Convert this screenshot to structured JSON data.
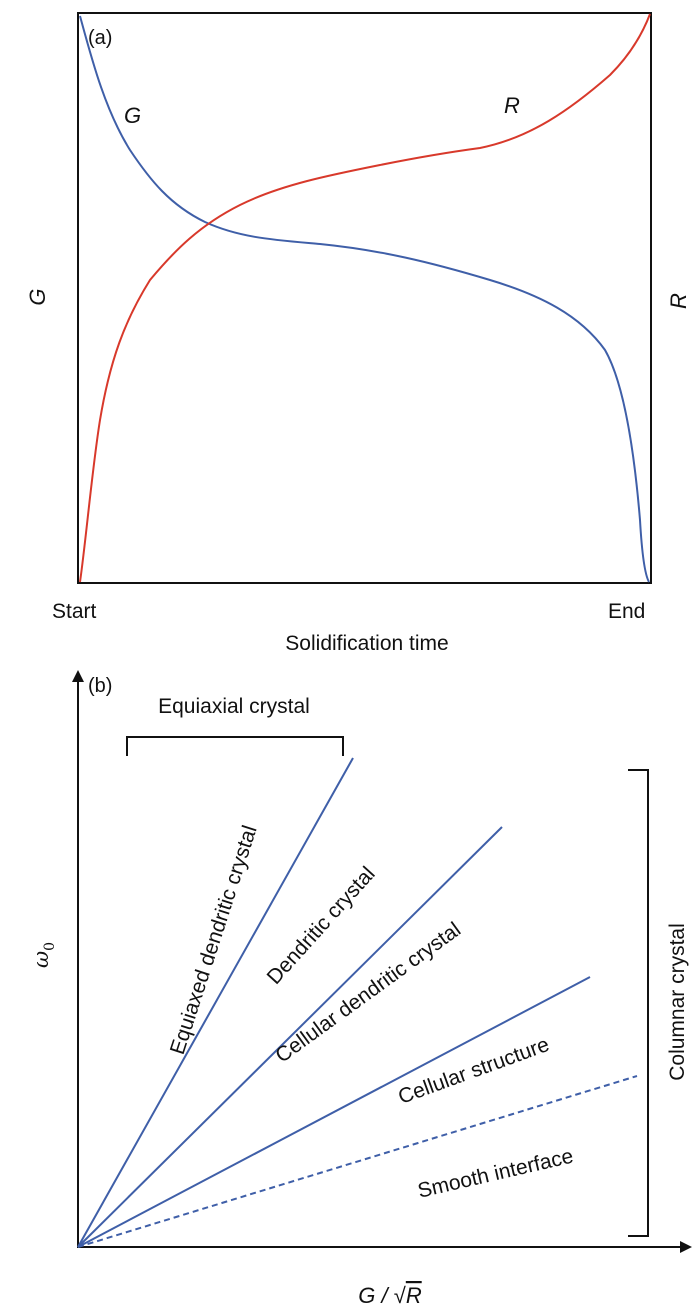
{
  "panel_a": {
    "label": "(a)",
    "y_left_label": "G",
    "y_right_label": "R",
    "x_start": "Start",
    "x_end": "End",
    "x_label": "Solidification time",
    "curve_g_label": "G",
    "curve_r_label": "R",
    "colors": {
      "g_curve": "#3f5fa8",
      "r_curve": "#d8392b",
      "frame": "#111111"
    }
  },
  "panel_b": {
    "label": "(b)",
    "y_axis_label": "ω",
    "y_axis_sub": "0",
    "x_axis_label_left": "G / ",
    "x_axis_sqrt": "√",
    "x_axis_label_var": "R",
    "equiaxial_bracket": "Equiaxial crystal",
    "columnar_bracket": "Columnar crystal",
    "regions": [
      "Equiaxed dendritic crystal",
      "Dendritic crystal",
      "Cellular dendritic crystal",
      "Cellular structure",
      "Smooth interface"
    ],
    "colors": {
      "lines": "#3f5fa8",
      "axis": "#111111"
    }
  }
}
